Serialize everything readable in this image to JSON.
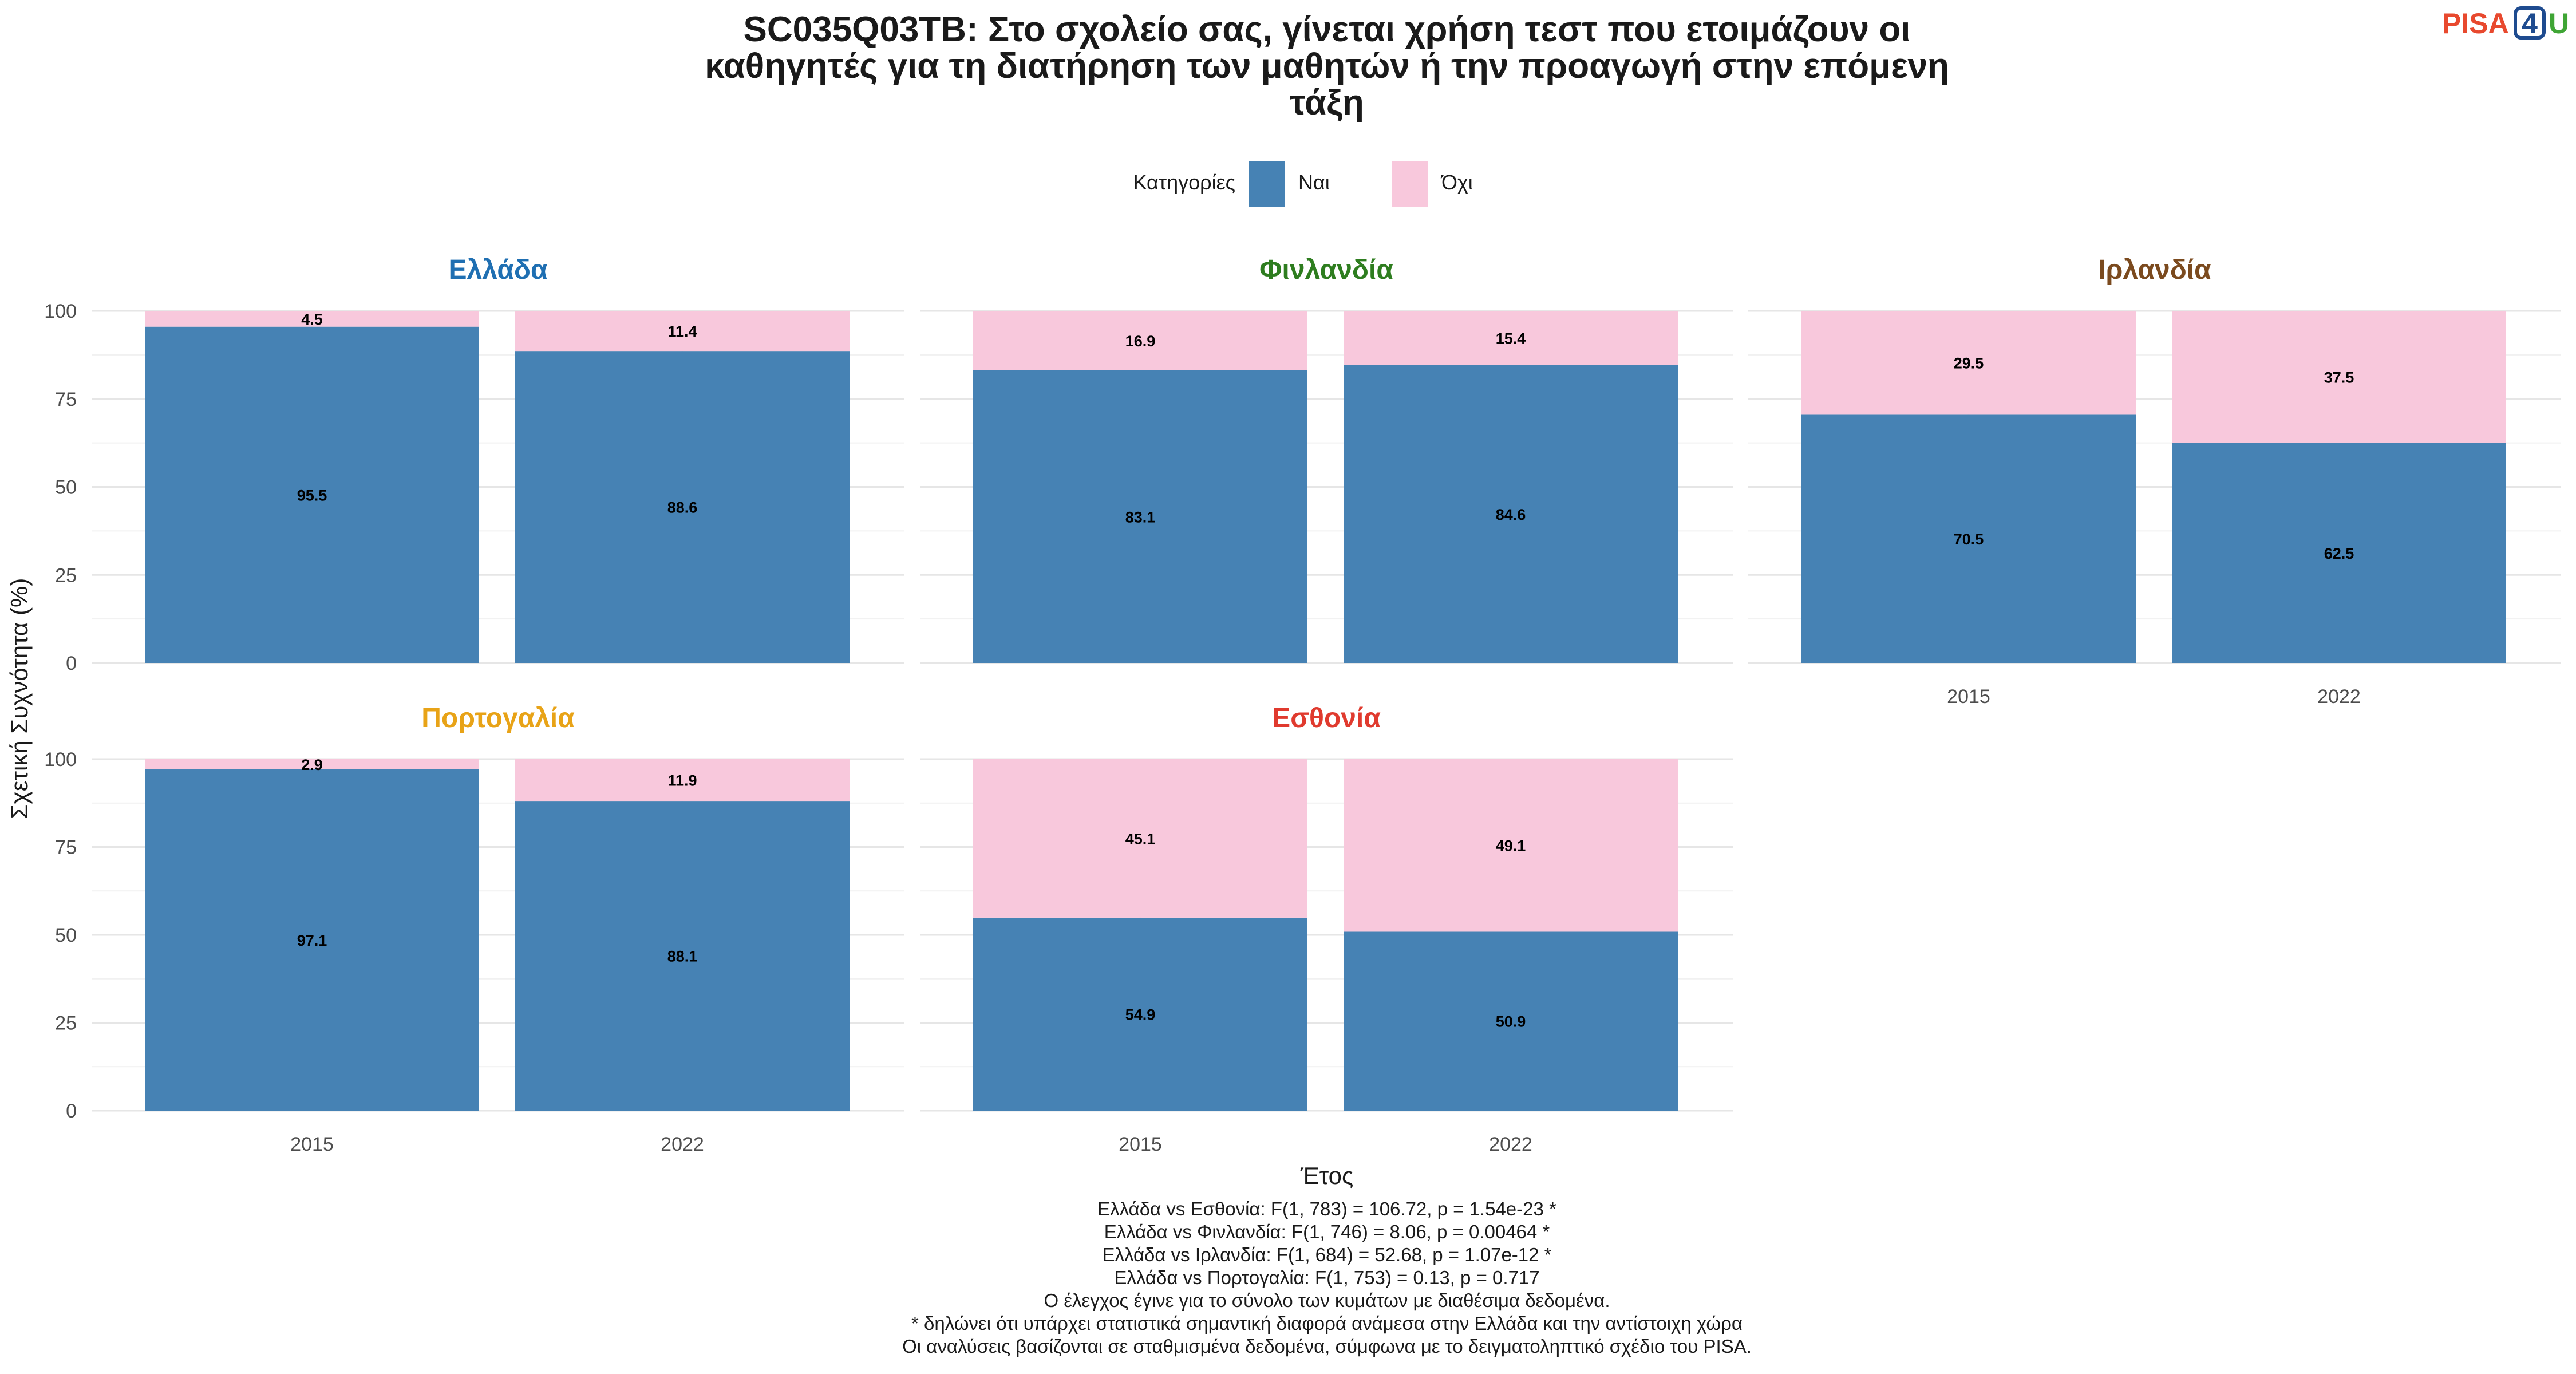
{
  "chart_data": {
    "type": "bar",
    "stacked": true,
    "title": "SC035Q03TB: Στο σχολείο σας, γίνεται χρήση τεστ που ετοιμάζουν οι καθηγητές για τη διατήρηση των μαθητών ή την προαγωγή στην επόμενη τάξη",
    "title_lines": [
      "SC035Q03TB: Στο σχολείο σας, γίνεται χρήση τεστ που ετοιμάζουν οι",
      "καθηγητές για τη διατήρηση των μαθητών ή την προαγωγή στην επόμενη",
      "τάξη"
    ],
    "xlabel": "Έτος",
    "ylabel": "Σχετική Συχνότητα (%)",
    "ylim": [
      0,
      100
    ],
    "yticks": [
      0,
      25,
      50,
      75,
      100
    ],
    "grid": true,
    "legend": {
      "title": "Κατηγορίες",
      "position": "top",
      "entries": [
        {
          "label": "Ναι",
          "color": "#4682B4"
        },
        {
          "label": "Όχι",
          "color": "#F8C8DC"
        }
      ]
    },
    "categories": [
      "2015",
      "2022"
    ],
    "panels": [
      {
        "name": "Ελλάδα",
        "color": "#1F6FB2",
        "series": [
          {
            "name": "Ναι",
            "values": [
              95.5,
              88.6
            ]
          },
          {
            "name": "Όχι",
            "values": [
              4.5,
              11.4
            ]
          }
        ]
      },
      {
        "name": "Φινλανδία",
        "color": "#2E7D1F",
        "series": [
          {
            "name": "Ναι",
            "values": [
              83.1,
              84.6
            ]
          },
          {
            "name": "Όχι",
            "values": [
              16.9,
              15.4
            ]
          }
        ]
      },
      {
        "name": "Ιρλανδία",
        "color": "#7B4A1E",
        "series": [
          {
            "name": "Ναι",
            "values": [
              70.5,
              62.5
            ]
          },
          {
            "name": "Όχι",
            "values": [
              29.5,
              37.5
            ]
          }
        ]
      },
      {
        "name": "Πορτογαλία",
        "color": "#E8A317",
        "series": [
          {
            "name": "Ναι",
            "values": [
              97.1,
              88.1
            ]
          },
          {
            "name": "Όχι",
            "values": [
              2.9,
              11.9
            ]
          }
        ]
      },
      {
        "name": "Εσθονία",
        "color": "#E03A2E",
        "series": [
          {
            "name": "Ναι",
            "values": [
              54.9,
              50.9
            ]
          },
          {
            "name": "Όχι",
            "values": [
              45.1,
              49.1
            ]
          }
        ]
      }
    ],
    "caption": [
      "Ελλάδα vs Εσθονία: F(1, 783) = 106.72, p = 1.54e-23 *",
      "Ελλάδα vs Φινλανδία: F(1, 746) = 8.06, p = 0.00464 *",
      "Ελλάδα vs Ιρλανδία: F(1, 684) = 52.68, p = 1.07e-12 *",
      "Ελλάδα vs Πορτογαλία: F(1, 753) = 0.13, p = 0.717",
      "Ο έλεγχος έγινε για το σύνολο των κυμάτων με διαθέσιμα δεδομένα.",
      "* δηλώνει ότι υπάρχει στατιστικά σημαντική διαφορά ανάμεσα στην Ελλάδα και την αντίστοιχη χώρα",
      "Οι αναλύσεις βασίζονται σε σταθμισμένα δεδομένα, σύμφωνα με το δειγματοληπτικό σχέδιο του PISA."
    ]
  },
  "logo": {
    "text_part1": "PISA",
    "text_part2": "4",
    "text_part3": "U",
    "color1": "#E8492E",
    "color2": "#1E4B8F",
    "color3": "#3FA535"
  }
}
